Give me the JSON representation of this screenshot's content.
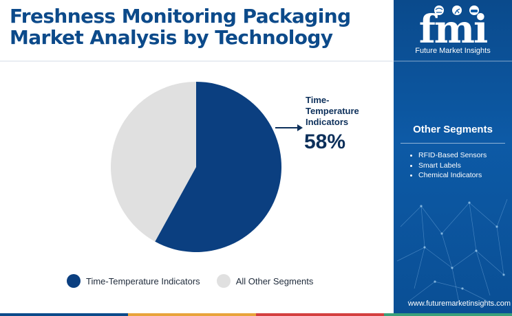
{
  "header": {
    "title_line1": "Freshness Monitoring Packaging",
    "title_line2": "Market Analysis by Technology"
  },
  "brand": {
    "logo_text": "fmi",
    "name": "Future Market Insights",
    "url": "www.futuremarketinsights.com"
  },
  "callout": {
    "label": "Time-Temperature Indicators",
    "value": "58%"
  },
  "sidebar": {
    "title": "Other Segments",
    "items": [
      "RFID-Based Sensors",
      "Smart Labels",
      "Chemical Indicators"
    ]
  },
  "legend": {
    "items": [
      {
        "label": "Time-Temperature Indicators",
        "color": "#0b3f80"
      },
      {
        "label": "All Other Segments",
        "color": "#e0e0e0"
      }
    ]
  },
  "colors": {
    "accent": "#0b3f80",
    "muted": "#e0e0e0",
    "panel": "#0d5aa6"
  },
  "chart_data": {
    "type": "pie",
    "categories": [
      "Time-Temperature Indicators",
      "All Other Segments"
    ],
    "values": [
      58,
      42
    ],
    "colors": [
      "#0b3f80",
      "#e0e0e0"
    ],
    "start": "top",
    "direction": "clockwise",
    "legend": "bottom"
  }
}
